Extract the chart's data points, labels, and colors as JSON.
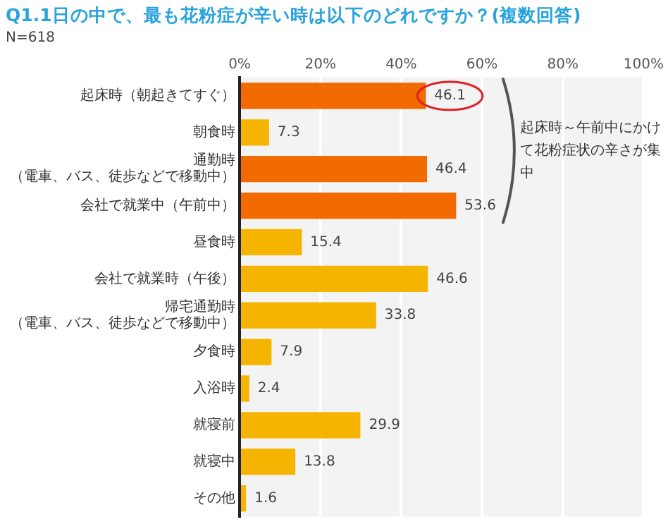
{
  "chart_data": {
    "type": "bar",
    "orientation": "horizontal",
    "title": "Q1.1日の中で、最も花粉症が辛い時は以下のどれですか？(複数回答)",
    "subtitle": "N=618",
    "categories": [
      "起床時（朝起きてすぐ）",
      "朝食時",
      "通勤時（電車、バス、徒歩などで移動中）",
      "会社で就業中（午前中）",
      "昼食時",
      "会社で就業時（午後）",
      "帰宅通勤時（電車、バス、徒歩などで移動中）",
      "夕食時",
      "入浴時",
      "就寝前",
      "就寝中",
      "その他"
    ],
    "values": [
      46.1,
      7.3,
      46.4,
      53.6,
      15.4,
      46.6,
      33.8,
      7.9,
      2.4,
      29.9,
      13.8,
      1.6
    ],
    "colors": [
      "#f26b00",
      "#f5b400",
      "#f26b00",
      "#f26b00",
      "#f5b400",
      "#f5b400",
      "#f5b400",
      "#f5b400",
      "#f5b400",
      "#f5b400",
      "#f5b400",
      "#f5b400"
    ],
    "xlim": [
      0,
      100
    ],
    "xticks": [
      {
        "value": 0,
        "label": "0%"
      },
      {
        "value": 20,
        "label": "20%"
      },
      {
        "value": 40,
        "label": "40%"
      },
      {
        "value": 60,
        "label": "60%"
      },
      {
        "value": 80,
        "label": "80%"
      },
      {
        "value": 100,
        "label": "100%"
      }
    ],
    "grid": "x",
    "data_labels": true,
    "legend": false,
    "annotations": [
      "起床時～午前中にかけて花粉症状の辛さが集中"
    ]
  }
}
